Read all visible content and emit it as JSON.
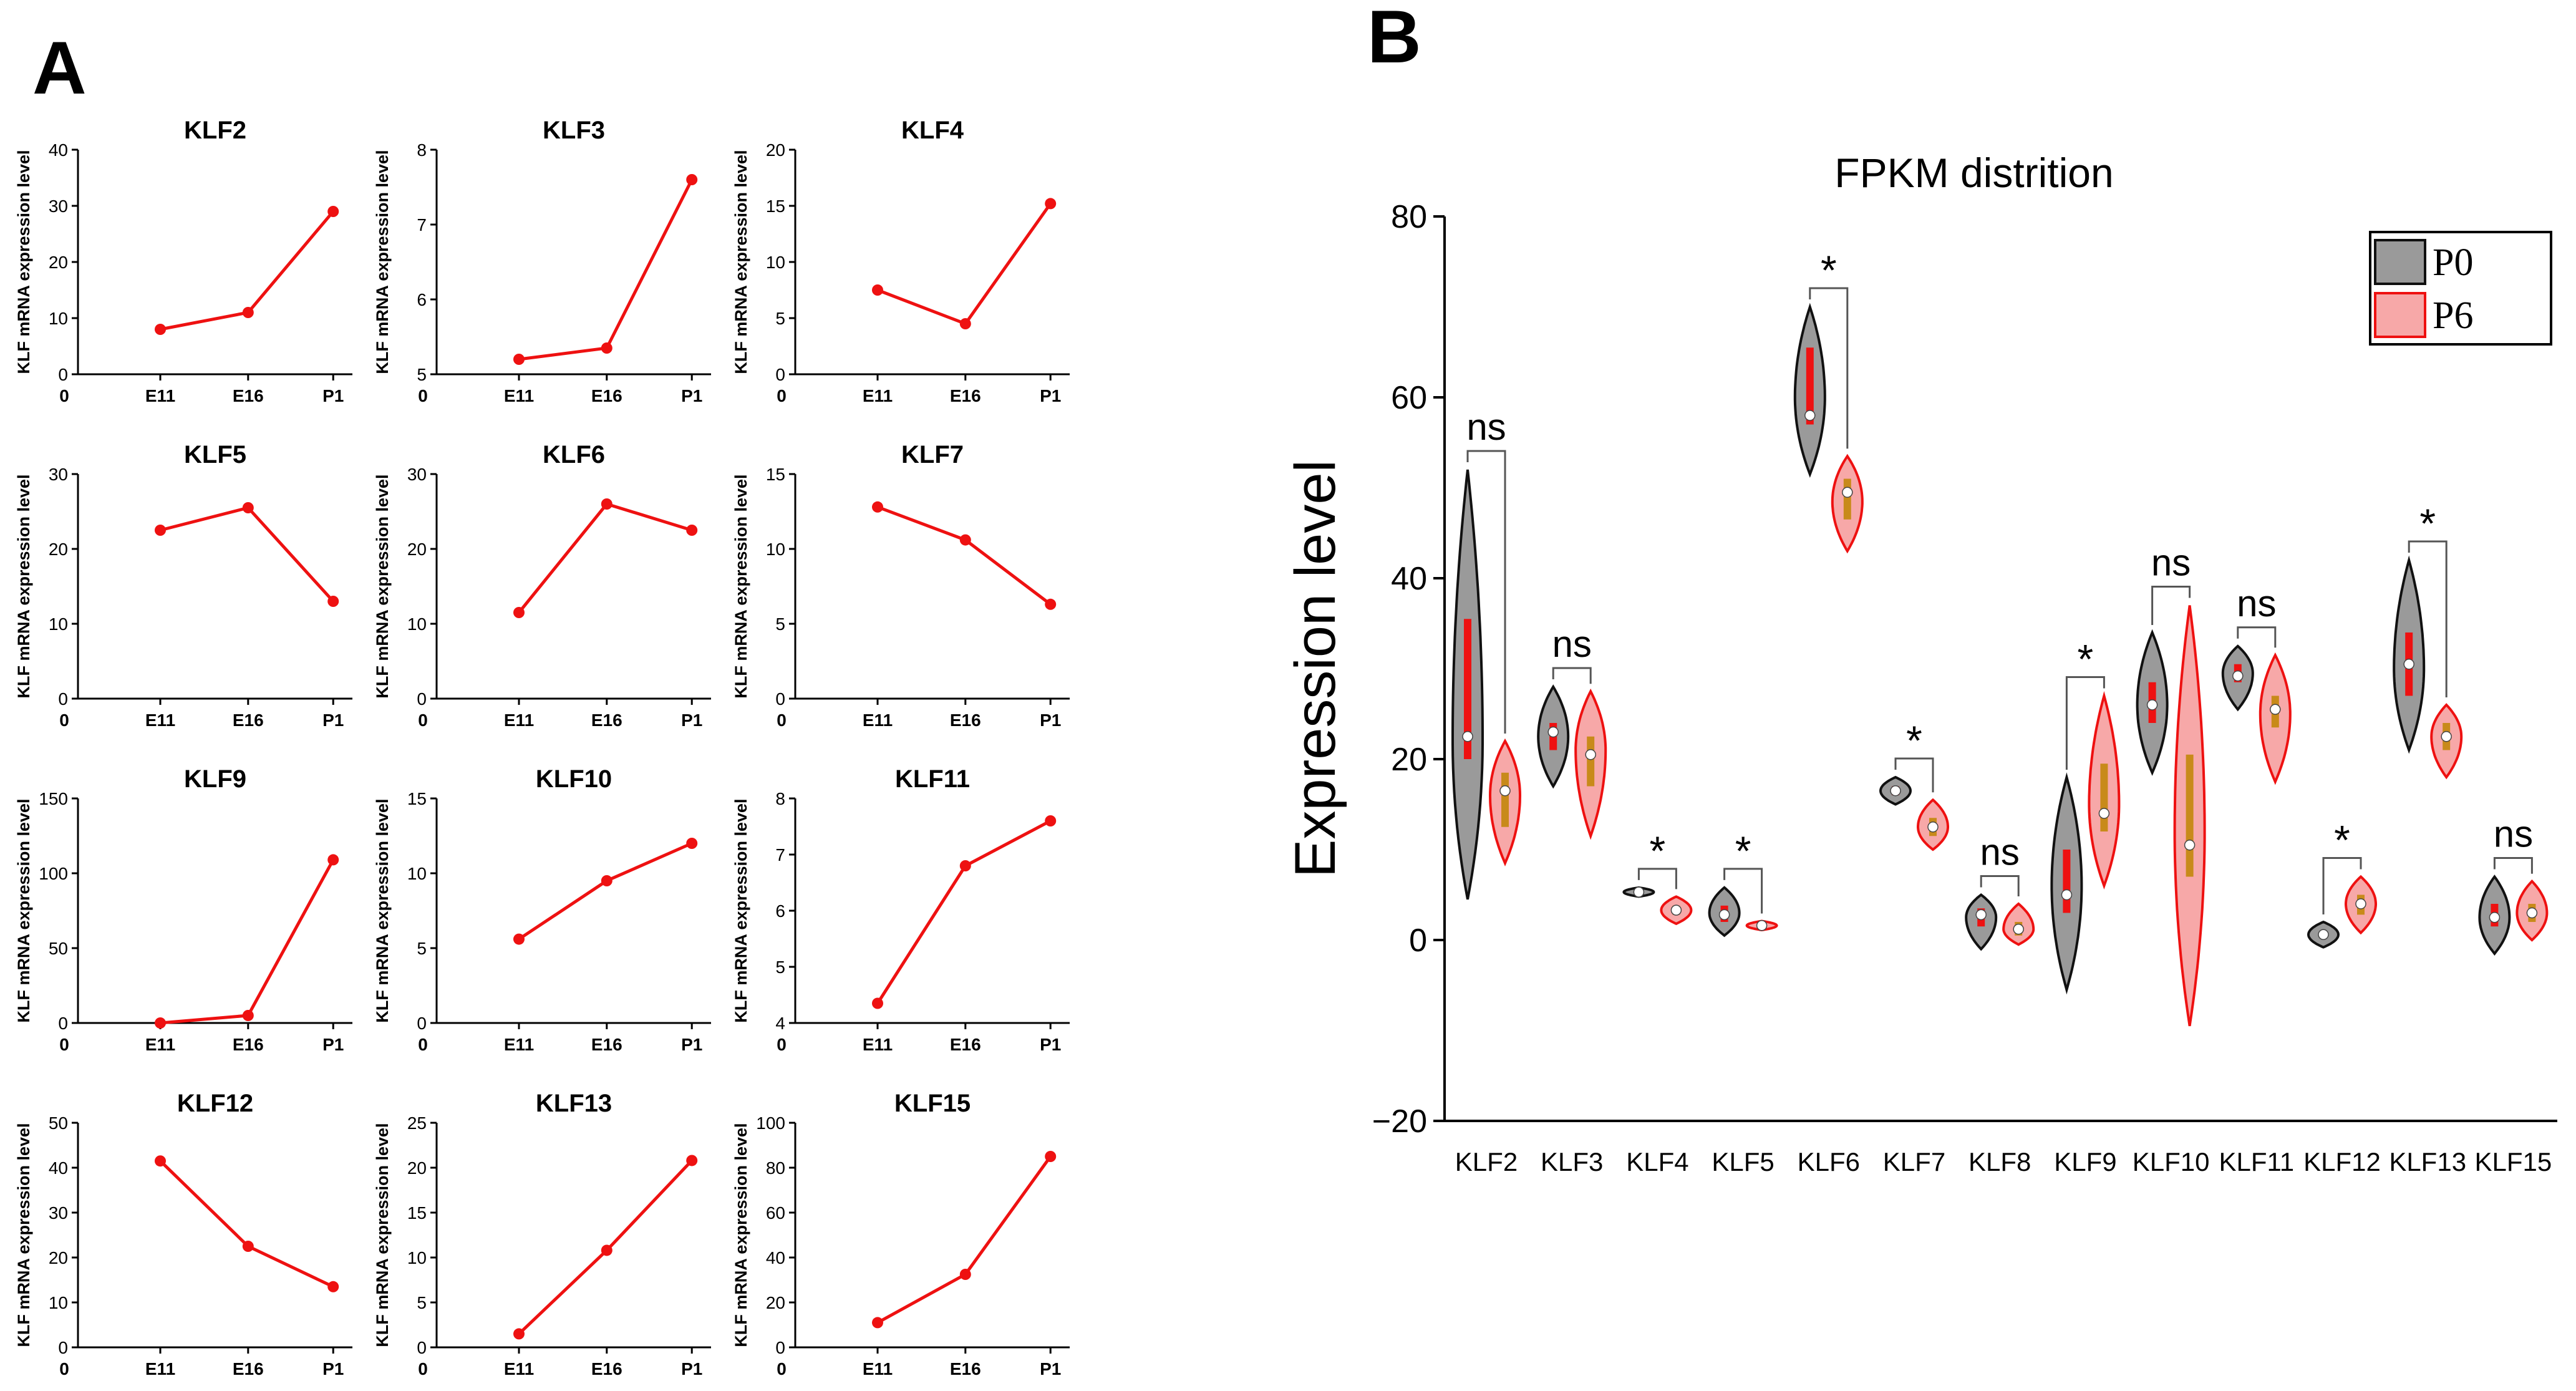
{
  "panel_labels": {
    "a": "A",
    "b": "B"
  },
  "chart_data": [
    {
      "panel": "A",
      "type": "line",
      "title": "KLF2",
      "xlabel": "",
      "ylabel": "KLF mRNA expression level",
      "x_origin_label": "0",
      "categories": [
        "E11",
        "E16",
        "P1"
      ],
      "values": [
        8,
        11,
        29
      ],
      "ylim": [
        0,
        40
      ],
      "yticks": [
        0,
        10,
        20,
        30,
        40
      ],
      "color": "#ee1111"
    },
    {
      "panel": "A",
      "type": "line",
      "title": "KLF3",
      "xlabel": "",
      "ylabel": "KLF mRNA expression level",
      "x_origin_label": "0",
      "categories": [
        "E11",
        "E16",
        "P1"
      ],
      "values": [
        5.2,
        5.35,
        7.6
      ],
      "ylim": [
        5,
        8
      ],
      "yticks": [
        5,
        6,
        7,
        8
      ],
      "color": "#ee1111"
    },
    {
      "panel": "A",
      "type": "line",
      "title": "KLF4",
      "xlabel": "",
      "ylabel": "KLF mRNA expression level",
      "x_origin_label": "0",
      "categories": [
        "E11",
        "E16",
        "P1"
      ],
      "values": [
        7.5,
        4.5,
        15.2
      ],
      "ylim": [
        0,
        20
      ],
      "yticks": [
        0,
        5,
        10,
        15,
        20
      ],
      "color": "#ee1111"
    },
    {
      "panel": "A",
      "type": "line",
      "title": "KLF5",
      "xlabel": "",
      "ylabel": "KLF mRNA expression level",
      "x_origin_label": "0",
      "categories": [
        "E11",
        "E16",
        "P1"
      ],
      "values": [
        22.5,
        25.5,
        13
      ],
      "ylim": [
        0,
        30
      ],
      "yticks": [
        0,
        10,
        20,
        30
      ],
      "color": "#ee1111"
    },
    {
      "panel": "A",
      "type": "line",
      "title": "KLF6",
      "xlabel": "",
      "ylabel": "KLF mRNA expression level",
      "x_origin_label": "0",
      "categories": [
        "E11",
        "E16",
        "P1"
      ],
      "values": [
        11.5,
        26,
        22.5
      ],
      "ylim": [
        0,
        30
      ],
      "yticks": [
        0,
        10,
        20,
        30
      ],
      "color": "#ee1111"
    },
    {
      "panel": "A",
      "type": "line",
      "title": "KLF7",
      "xlabel": "",
      "ylabel": "KLF mRNA expression level",
      "x_origin_label": "0",
      "categories": [
        "E11",
        "E16",
        "P1"
      ],
      "values": [
        12.8,
        10.6,
        6.3
      ],
      "ylim": [
        0,
        15
      ],
      "yticks": [
        0,
        5,
        10,
        15
      ],
      "color": "#ee1111"
    },
    {
      "panel": "A",
      "type": "line",
      "title": "KLF9",
      "xlabel": "",
      "ylabel": "KLF mRNA expression level",
      "x_origin_label": "0",
      "categories": [
        "E11",
        "E16",
        "P1"
      ],
      "values": [
        0,
        5,
        109
      ],
      "ylim": [
        0,
        150
      ],
      "yticks": [
        0,
        50,
        100,
        150
      ],
      "color": "#ee1111"
    },
    {
      "panel": "A",
      "type": "line",
      "title": "KLF10",
      "xlabel": "",
      "ylabel": "KLF mRNA expression level",
      "x_origin_label": "0",
      "categories": [
        "E11",
        "E16",
        "P1"
      ],
      "values": [
        5.6,
        9.5,
        12
      ],
      "ylim": [
        0,
        15
      ],
      "yticks": [
        0,
        5,
        10,
        15
      ],
      "color": "#ee1111"
    },
    {
      "panel": "A",
      "type": "line",
      "title": "KLF11",
      "xlabel": "",
      "ylabel": "KLF mRNA expression level",
      "x_origin_label": "0",
      "categories": [
        "E11",
        "E16",
        "P1"
      ],
      "values": [
        4.35,
        6.8,
        7.6
      ],
      "ylim": [
        4,
        8
      ],
      "yticks": [
        4,
        5,
        6,
        7,
        8
      ],
      "color": "#ee1111"
    },
    {
      "panel": "A",
      "type": "line",
      "title": "KLF12",
      "xlabel": "",
      "ylabel": "KLF mRNA expression level",
      "x_origin_label": "0",
      "categories": [
        "E11",
        "E16",
        "P1"
      ],
      "values": [
        41.5,
        22.5,
        13.5
      ],
      "ylim": [
        0,
        50
      ],
      "yticks": [
        0,
        10,
        20,
        30,
        40,
        50
      ],
      "color": "#ee1111"
    },
    {
      "panel": "A",
      "type": "line",
      "title": "KLF13",
      "xlabel": "",
      "ylabel": "KLF mRNA expression level",
      "x_origin_label": "0",
      "categories": [
        "E11",
        "E16",
        "P1"
      ],
      "values": [
        1.5,
        10.8,
        20.8
      ],
      "ylim": [
        0,
        25
      ],
      "yticks": [
        0,
        5,
        10,
        15,
        20,
        25
      ],
      "color": "#ee1111"
    },
    {
      "panel": "A",
      "type": "line",
      "title": "KLF15",
      "xlabel": "",
      "ylabel": "KLF mRNA expression level",
      "x_origin_label": "0",
      "categories": [
        "E11",
        "E16",
        "P1"
      ],
      "values": [
        11,
        32.5,
        85
      ],
      "ylim": [
        0,
        100
      ],
      "yticks": [
        0,
        20,
        40,
        60,
        80,
        100
      ],
      "color": "#ee1111"
    },
    {
      "panel": "B",
      "type": "violin",
      "title": "FPKM distrition",
      "xlabel": "",
      "ylabel": "Expression level",
      "ylim": [
        -20,
        80
      ],
      "yticks": [
        -20,
        0,
        20,
        40,
        60,
        80
      ],
      "ytick_labels": [
        "−20",
        "0",
        "20",
        "40",
        "60",
        "80"
      ],
      "legend_position": "top-right",
      "series": [
        {
          "name": "P0",
          "fill": "#9a9a9a",
          "stroke": "#111111",
          "box": "#ee1111"
        },
        {
          "name": "P6",
          "fill": "#f7a8a8",
          "stroke": "#ee1111",
          "box": "#c88a1a"
        }
      ],
      "groups": [
        {
          "label": "KLF2",
          "sig": "ns",
          "p0": {
            "min": 4.5,
            "max": 52,
            "median": 22.5,
            "q1": 20,
            "q3": 35.5,
            "peak": 22
          },
          "p6": {
            "min": 8.5,
            "max": 22,
            "median": 16.5,
            "q1": 12.5,
            "q3": 18.5,
            "peak": 16
          }
        },
        {
          "label": "KLF3",
          "sig": "ns",
          "p0": {
            "min": 17,
            "max": 28,
            "median": 23,
            "q1": 21,
            "q3": 24,
            "peak": 22.5
          },
          "p6": {
            "min": 11.5,
            "max": 27.5,
            "median": 20.5,
            "q1": 17,
            "q3": 22.5,
            "peak": 21
          }
        },
        {
          "label": "KLF4",
          "sig": "*",
          "p0": {
            "min": 4.8,
            "max": 5.8,
            "median": 5.3,
            "q1": 5.1,
            "q3": 5.5,
            "peak": 5.3
          },
          "p6": {
            "min": 1.8,
            "max": 4.8,
            "median": 3.3,
            "q1": 2.8,
            "q3": 3.8,
            "peak": 3.3
          }
        },
        {
          "label": "KLF5",
          "sig": "*",
          "p0": {
            "min": 0.5,
            "max": 5.8,
            "median": 2.8,
            "q1": 2,
            "q3": 3.8,
            "peak": 3
          },
          "p6": {
            "min": 1.1,
            "max": 2.1,
            "median": 1.6,
            "q1": 1.4,
            "q3": 1.8,
            "peak": 1.6
          }
        },
        {
          "label": "KLF6",
          "sig": "*",
          "p0": {
            "min": 51.5,
            "max": 70,
            "median": 58,
            "q1": 57,
            "q3": 65.5,
            "peak": 60
          },
          "p6": {
            "min": 43,
            "max": 53.5,
            "median": 49.5,
            "q1": 46.5,
            "q3": 51,
            "peak": 48.5
          }
        },
        {
          "label": "KLF7",
          "sig": "*",
          "p0": {
            "min": 15,
            "max": 18,
            "median": 16.5,
            "q1": 16,
            "q3": 17,
            "peak": 16.5
          },
          "p6": {
            "min": 10,
            "max": 15.5,
            "median": 12.5,
            "q1": 11.5,
            "q3": 13.5,
            "peak": 12.5
          }
        },
        {
          "label": "KLF8",
          "sig": "ns",
          "p0": {
            "min": -1,
            "max": 5,
            "median": 2.8,
            "q1": 1.5,
            "q3": 3.5,
            "peak": 2.5
          },
          "p6": {
            "min": -0.5,
            "max": 4,
            "median": 1.2,
            "q1": 0.5,
            "q3": 2,
            "peak": 1.2
          }
        },
        {
          "label": "KLF9",
          "sig": "*",
          "p0": {
            "min": -5.5,
            "max": 18,
            "median": 5,
            "q1": 3,
            "q3": 10,
            "peak": 6
          },
          "p6": {
            "min": 6,
            "max": 27,
            "median": 14,
            "q1": 12,
            "q3": 19.5,
            "peak": 15
          }
        },
        {
          "label": "KLF10",
          "sig": "ns",
          "p0": {
            "min": 18.5,
            "max": 34,
            "median": 26,
            "q1": 24,
            "q3": 28.5,
            "peak": 26
          },
          "p6": {
            "min": -9.5,
            "max": 37,
            "median": 10.5,
            "q1": 7,
            "q3": 20.5,
            "peak": 12
          }
        },
        {
          "label": "KLF11",
          "sig": "ns",
          "p0": {
            "min": 25.5,
            "max": 32.5,
            "median": 29.2,
            "q1": 28.5,
            "q3": 30.5,
            "peak": 29.5
          },
          "p6": {
            "min": 17.5,
            "max": 31.5,
            "median": 25.5,
            "q1": 23.5,
            "q3": 27,
            "peak": 25
          }
        },
        {
          "label": "KLF12",
          "sig": "*",
          "p0": {
            "min": -0.8,
            "max": 2,
            "median": 0.6,
            "q1": 0.2,
            "q3": 1,
            "peak": 0.6
          },
          "p6": {
            "min": 0.8,
            "max": 7,
            "median": 4,
            "q1": 2.8,
            "q3": 5,
            "peak": 4
          }
        },
        {
          "label": "KLF13",
          "sig": "*",
          "p0": {
            "min": 21,
            "max": 42,
            "median": 30.5,
            "q1": 27,
            "q3": 34,
            "peak": 30
          },
          "p6": {
            "min": 18,
            "max": 26,
            "median": 22.5,
            "q1": 21,
            "q3": 24,
            "peak": 22.5
          }
        },
        {
          "label": "KLF15",
          "sig": "ns",
          "p0": {
            "min": -1.5,
            "max": 7,
            "median": 2.5,
            "q1": 1.5,
            "q3": 4,
            "peak": 2.5
          },
          "p6": {
            "min": 0,
            "max": 6.5,
            "median": 3,
            "q1": 2,
            "q3": 4,
            "peak": 3
          }
        }
      ]
    }
  ]
}
